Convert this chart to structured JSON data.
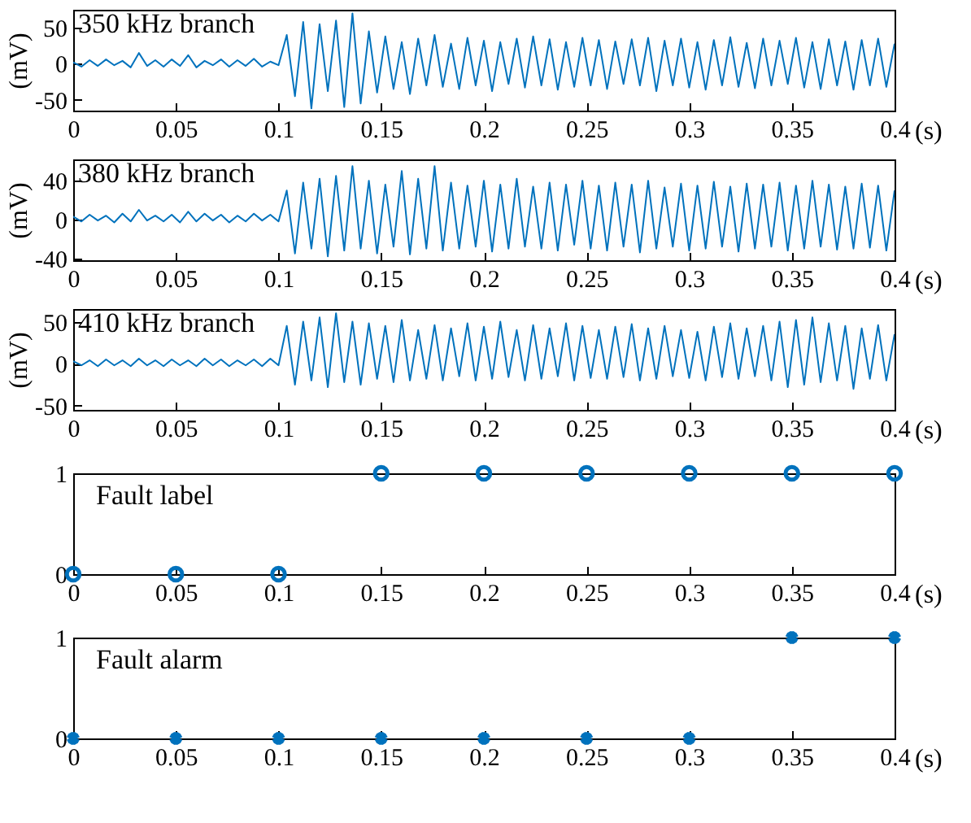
{
  "chart_data": [
    {
      "type": "line",
      "xlabel": "(s)",
      "ylabel": "(mV)",
      "annotations": [
        "350 kHz branch"
      ],
      "xlim": [
        0,
        0.4
      ],
      "xticks": [
        0,
        0.05,
        0.1,
        0.15,
        0.2,
        0.25,
        0.3,
        0.35,
        0.4
      ],
      "ylim": [
        -65,
        75
      ],
      "yticks": [
        -50,
        0,
        50
      ],
      "x": [
        0,
        0.004,
        0.008,
        0.012,
        0.016,
        0.02,
        0.024,
        0.028,
        0.032,
        0.036,
        0.04,
        0.044,
        0.048,
        0.052,
        0.056,
        0.06,
        0.064,
        0.068,
        0.072,
        0.076,
        0.08,
        0.084,
        0.088,
        0.092,
        0.096,
        0.1,
        0.104,
        0.108,
        0.112,
        0.116,
        0.12,
        0.124,
        0.128,
        0.132,
        0.136,
        0.14,
        0.144,
        0.148,
        0.152,
        0.156,
        0.16,
        0.164,
        0.168,
        0.172,
        0.176,
        0.18,
        0.184,
        0.188,
        0.192,
        0.196,
        0.2,
        0.204,
        0.208,
        0.212,
        0.216,
        0.22,
        0.224,
        0.228,
        0.232,
        0.236,
        0.24,
        0.244,
        0.248,
        0.252,
        0.256,
        0.26,
        0.264,
        0.268,
        0.272,
        0.276,
        0.28,
        0.284,
        0.288,
        0.292,
        0.296,
        0.3,
        0.304,
        0.308,
        0.312,
        0.316,
        0.32,
        0.324,
        0.328,
        0.332,
        0.336,
        0.34,
        0.344,
        0.348,
        0.352,
        0.356,
        0.36,
        0.364,
        0.368,
        0.372,
        0.376,
        0.38,
        0.384,
        0.388,
        0.392,
        0.396,
        0.4
      ],
      "series": [
        {
          "color": "#0072bd",
          "values": [
            2,
            -4,
            5,
            -3,
            6,
            -2,
            4,
            -5,
            15,
            -3,
            5,
            -4,
            6,
            -3,
            12,
            -5,
            4,
            -2,
            6,
            -4,
            5,
            -3,
            7,
            -4,
            3,
            -2,
            40,
            -45,
            58,
            -62,
            55,
            -38,
            60,
            -60,
            70,
            -55,
            45,
            -40,
            38,
            -35,
            30,
            -42,
            35,
            -30,
            40,
            -32,
            28,
            -35,
            36,
            -30,
            32,
            -38,
            30,
            -28,
            35,
            -33,
            38,
            -30,
            34,
            -36,
            30,
            -32,
            36,
            -30,
            33,
            -35,
            31,
            -28,
            34,
            -30,
            36,
            -38,
            32,
            -30,
            35,
            -33,
            30,
            -36,
            33,
            -30,
            37,
            -32,
            29,
            -34,
            35,
            -30,
            32,
            -28,
            36,
            -33,
            30,
            -35,
            34,
            -30,
            31,
            -36,
            33,
            -30,
            35,
            -32,
            28
          ]
        }
      ]
    },
    {
      "type": "line",
      "xlabel": "(s)",
      "ylabel": "(mV)",
      "annotations": [
        "380 kHz branch"
      ],
      "xlim": [
        0,
        0.4
      ],
      "xticks": [
        0,
        0.05,
        0.1,
        0.15,
        0.2,
        0.25,
        0.3,
        0.35,
        0.4
      ],
      "ylim": [
        -42,
        62
      ],
      "yticks": [
        -40,
        0,
        40
      ],
      "x": [
        0,
        0.004,
        0.008,
        0.012,
        0.016,
        0.02,
        0.024,
        0.028,
        0.032,
        0.036,
        0.04,
        0.044,
        0.048,
        0.052,
        0.056,
        0.06,
        0.064,
        0.068,
        0.072,
        0.076,
        0.08,
        0.084,
        0.088,
        0.092,
        0.096,
        0.1,
        0.104,
        0.108,
        0.112,
        0.116,
        0.12,
        0.124,
        0.128,
        0.132,
        0.136,
        0.14,
        0.144,
        0.148,
        0.152,
        0.156,
        0.16,
        0.164,
        0.168,
        0.172,
        0.176,
        0.18,
        0.184,
        0.188,
        0.192,
        0.196,
        0.2,
        0.204,
        0.208,
        0.212,
        0.216,
        0.22,
        0.224,
        0.228,
        0.232,
        0.236,
        0.24,
        0.244,
        0.248,
        0.252,
        0.256,
        0.26,
        0.264,
        0.268,
        0.272,
        0.276,
        0.28,
        0.284,
        0.288,
        0.292,
        0.296,
        0.3,
        0.304,
        0.308,
        0.312,
        0.316,
        0.32,
        0.324,
        0.328,
        0.332,
        0.336,
        0.34,
        0.344,
        0.348,
        0.352,
        0.356,
        0.36,
        0.364,
        0.368,
        0.372,
        0.376,
        0.38,
        0.384,
        0.388,
        0.392,
        0.396,
        0.4
      ],
      "series": [
        {
          "color": "#0072bd",
          "values": [
            3,
            -2,
            5,
            -1,
            4,
            -3,
            6,
            -2,
            10,
            -1,
            4,
            -2,
            5,
            -3,
            8,
            -2,
            6,
            -1,
            5,
            -3,
            4,
            -2,
            6,
            -1,
            5,
            -2,
            30,
            -35,
            38,
            -30,
            42,
            -38,
            45,
            -32,
            55,
            -30,
            40,
            -35,
            36,
            -28,
            50,
            -36,
            42,
            -30,
            55,
            -32,
            38,
            -30,
            35,
            -28,
            40,
            -33,
            36,
            -30,
            42,
            -28,
            34,
            -30,
            38,
            -32,
            36,
            -26,
            40,
            -30,
            35,
            -32,
            38,
            -28,
            36,
            -34,
            40,
            -30,
            33,
            -28,
            37,
            -32,
            35,
            -30,
            39,
            -28,
            34,
            -33,
            37,
            -30,
            36,
            -28,
            38,
            -32,
            35,
            -30,
            40,
            -28,
            36,
            -31,
            34,
            -30,
            37,
            -29,
            35,
            -32,
            30
          ]
        }
      ]
    },
    {
      "type": "line",
      "xlabel": "(s)",
      "ylabel": "(mV)",
      "annotations": [
        "410 kHz branch"
      ],
      "xlim": [
        0,
        0.4
      ],
      "xticks": [
        0,
        0.05,
        0.1,
        0.15,
        0.2,
        0.25,
        0.3,
        0.35,
        0.4
      ],
      "ylim": [
        -55,
        65
      ],
      "yticks": [
        -50,
        0,
        50
      ],
      "x": [
        0,
        0.004,
        0.008,
        0.012,
        0.016,
        0.02,
        0.024,
        0.028,
        0.032,
        0.036,
        0.04,
        0.044,
        0.048,
        0.052,
        0.056,
        0.06,
        0.064,
        0.068,
        0.072,
        0.076,
        0.08,
        0.084,
        0.088,
        0.092,
        0.096,
        0.1,
        0.104,
        0.108,
        0.112,
        0.116,
        0.12,
        0.124,
        0.128,
        0.132,
        0.136,
        0.14,
        0.144,
        0.148,
        0.152,
        0.156,
        0.16,
        0.164,
        0.168,
        0.172,
        0.176,
        0.18,
        0.184,
        0.188,
        0.192,
        0.196,
        0.2,
        0.204,
        0.208,
        0.212,
        0.216,
        0.22,
        0.224,
        0.228,
        0.232,
        0.236,
        0.24,
        0.244,
        0.248,
        0.252,
        0.256,
        0.26,
        0.264,
        0.268,
        0.272,
        0.276,
        0.28,
        0.284,
        0.288,
        0.292,
        0.296,
        0.3,
        0.304,
        0.308,
        0.312,
        0.316,
        0.32,
        0.324,
        0.328,
        0.332,
        0.336,
        0.34,
        0.344,
        0.348,
        0.352,
        0.356,
        0.36,
        0.364,
        0.368,
        0.372,
        0.376,
        0.38,
        0.384,
        0.388,
        0.392,
        0.396,
        0.4
      ],
      "series": [
        {
          "color": "#0072bd",
          "values": [
            3,
            -2,
            4,
            -3,
            5,
            -2,
            4,
            -3,
            6,
            -2,
            4,
            -3,
            5,
            -2,
            4,
            -3,
            6,
            -2,
            5,
            -3,
            4,
            -2,
            5,
            -3,
            6,
            -2,
            45,
            -25,
            50,
            -20,
            55,
            -28,
            60,
            -22,
            50,
            -25,
            48,
            -18,
            45,
            -22,
            52,
            -20,
            40,
            -18,
            46,
            -20,
            42,
            -15,
            48,
            -20,
            44,
            -18,
            50,
            -16,
            40,
            -20,
            46,
            -18,
            42,
            -15,
            48,
            -20,
            45,
            -17,
            40,
            -18,
            44,
            -16,
            47,
            -20,
            42,
            -18,
            45,
            -15,
            40,
            -17,
            38,
            -20,
            44,
            -16,
            48,
            -18,
            42,
            -15,
            45,
            -20,
            50,
            -28,
            52,
            -25,
            55,
            -22,
            48,
            -20,
            45,
            -30,
            42,
            -18,
            46,
            -20,
            35
          ]
        }
      ]
    },
    {
      "type": "scatter",
      "xlabel": "(s)",
      "annotations": [
        "Fault label"
      ],
      "marker": "circle",
      "xlim": [
        0,
        0.4
      ],
      "xticks": [
        0,
        0.05,
        0.1,
        0.15,
        0.2,
        0.25,
        0.3,
        0.35,
        0.4
      ],
      "ylim": [
        0,
        1
      ],
      "yticks": [
        0,
        1
      ],
      "x": [
        0,
        0.05,
        0.1,
        0.15,
        0.2,
        0.25,
        0.3,
        0.35,
        0.4
      ],
      "series": [
        {
          "color": "#0072bd",
          "values": [
            0,
            0,
            0,
            1,
            1,
            1,
            1,
            1,
            1
          ]
        }
      ]
    },
    {
      "type": "scatter",
      "xlabel": "(s)",
      "annotations": [
        "Fault alarm"
      ],
      "marker": "cross",
      "xlim": [
        0,
        0.4
      ],
      "xticks": [
        0,
        0.05,
        0.1,
        0.15,
        0.2,
        0.25,
        0.3,
        0.35,
        0.4
      ],
      "ylim": [
        0,
        1
      ],
      "yticks": [
        0,
        1
      ],
      "x": [
        0,
        0.05,
        0.1,
        0.15,
        0.2,
        0.25,
        0.3,
        0.35,
        0.4
      ],
      "series": [
        {
          "color": "#0072bd",
          "values": [
            0,
            0,
            0,
            0,
            0,
            0,
            0,
            1,
            1
          ]
        }
      ]
    }
  ]
}
